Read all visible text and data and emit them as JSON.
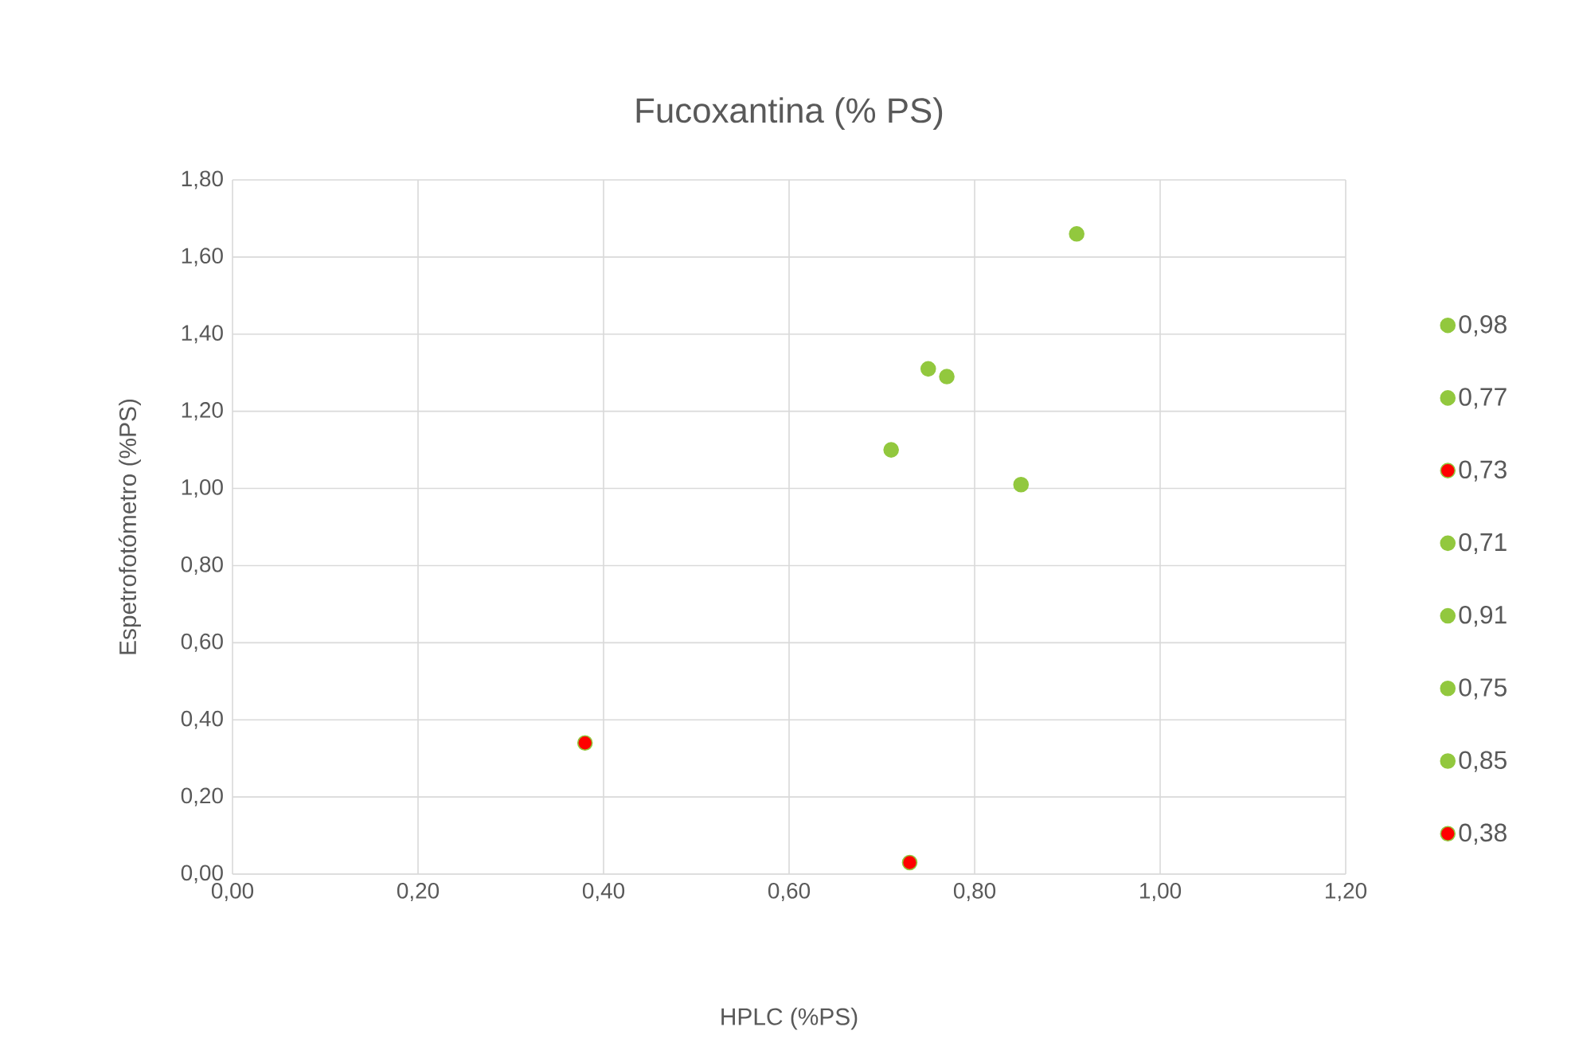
{
  "chart_data": {
    "type": "scatter",
    "title": "Fucoxantina (% PS)",
    "xlabel": "HPLC (%PS)",
    "ylabel": "Espetrofotómetro (%PS)",
    "xlim": [
      0,
      1.2
    ],
    "ylim": [
      0,
      1.8
    ],
    "xticks": [
      {
        "value": 0,
        "label": "0,00"
      },
      {
        "value": 0.2,
        "label": "0,20"
      },
      {
        "value": 0.4,
        "label": "0,40"
      },
      {
        "value": 0.6,
        "label": "0,60"
      },
      {
        "value": 0.8,
        "label": "0,80"
      },
      {
        "value": 1.0,
        "label": "1,00"
      },
      {
        "value": 1.2,
        "label": "1,20"
      }
    ],
    "yticks": [
      {
        "value": 0,
        "label": "0,00"
      },
      {
        "value": 0.2,
        "label": "0,20"
      },
      {
        "value": 0.4,
        "label": "0,40"
      },
      {
        "value": 0.6,
        "label": "0,60"
      },
      {
        "value": 0.8,
        "label": "0,80"
      },
      {
        "value": 1.0,
        "label": "1,00"
      },
      {
        "value": 1.2,
        "label": "1,20"
      },
      {
        "value": 1.4,
        "label": "1,40"
      },
      {
        "value": 1.6,
        "label": "1,60"
      },
      {
        "value": 1.8,
        "label": "1,80"
      }
    ],
    "grid": true,
    "legend": "right",
    "series": [
      {
        "name": "0,98",
        "color": "#92c83e",
        "values": [
          null
        ]
      },
      {
        "name": "0,77",
        "color": "#92c83e",
        "x": [
          0.77
        ],
        "values": [
          1.29
        ]
      },
      {
        "name": "0,73",
        "color": "#ff0000",
        "x": [
          0.73
        ],
        "values": [
          0.03
        ]
      },
      {
        "name": "0,71",
        "color": "#92c83e",
        "x": [
          0.71
        ],
        "values": [
          1.1
        ]
      },
      {
        "name": "0,91",
        "color": "#92c83e",
        "x": [
          0.91
        ],
        "values": [
          1.66
        ]
      },
      {
        "name": "0,75",
        "color": "#92c83e",
        "x": [
          0.75
        ],
        "values": [
          1.31
        ]
      },
      {
        "name": "0,85",
        "color": "#92c83e",
        "x": [
          0.85
        ],
        "values": [
          1.01
        ]
      },
      {
        "name": "0,38",
        "color": "#ff0000",
        "x": [
          0.38
        ],
        "values": [
          0.34
        ]
      }
    ]
  }
}
